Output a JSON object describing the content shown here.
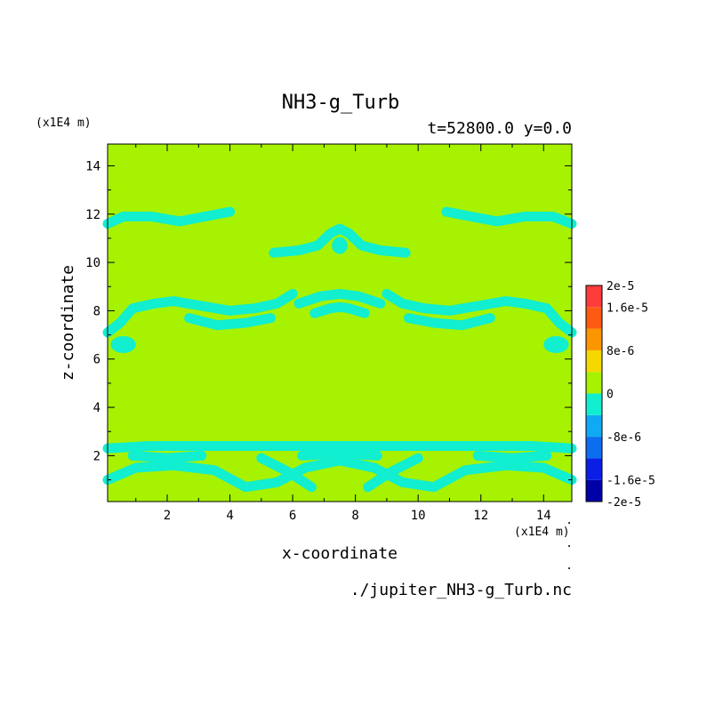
{
  "chart_data": {
    "type": "heatmap",
    "title": "NH3-g_Turb",
    "subtitle": "t=52800.0 y=0.0",
    "xlabel": "x-coordinate",
    "ylabel": "z-coordinate",
    "x_unit": "(x1E4 m)",
    "y_unit": "(x1E4 m)",
    "source_file": "./jupiter_NH3-g_Turb.nc",
    "xlim": [
      0.1,
      14.9
    ],
    "ylim": [
      0.1,
      14.9
    ],
    "x_ticks": [
      2,
      4,
      6,
      8,
      10,
      12,
      14
    ],
    "y_ticks": [
      2,
      4,
      6,
      8,
      10,
      12,
      14
    ],
    "x_tick_labels": [
      "2",
      "4",
      "6",
      "8",
      "10",
      "12",
      "14"
    ],
    "y_tick_labels": [
      "2",
      "4",
      "6",
      "8",
      "10",
      "12",
      "14"
    ],
    "background_level": "0 to 4e-6",
    "colors": {
      "background_field": "#a6f200",
      "negative_band": "#11eed0"
    },
    "colorbar": {
      "boundaries": [
        -2e-05,
        -1.6e-05,
        -1.2e-05,
        -8e-06,
        -4e-06,
        0,
        4e-06,
        8e-06,
        1.2e-05,
        1.6e-05,
        2e-05
      ],
      "colors": [
        "#0000a8",
        "#0a1ee6",
        "#0b6ef0",
        "#10aaf4",
        "#11eed0",
        "#a6f200",
        "#f5d800",
        "#fb9500",
        "#ff5a14",
        "#ff3c3c"
      ],
      "labels": [
        "2e-5",
        "1.6e-5",
        "8e-6",
        "0",
        "-8e-6",
        "-1.6e-5",
        "-2e-5"
      ],
      "label_values": [
        2e-05,
        1.6e-05,
        8e-06,
        0,
        -8e-06,
        -1.6e-05,
        -2e-05
      ]
    },
    "features": [
      {
        "level": "-4e-6 to 0",
        "description": "negative anomaly contours",
        "paths": [
          [
            [
              0.1,
              11.6
            ],
            [
              0.6,
              11.9
            ],
            [
              1.5,
              11.9
            ],
            [
              2.4,
              11.7
            ],
            [
              3.2,
              11.9
            ],
            [
              4.0,
              12.1
            ]
          ],
          [
            [
              10.9,
              12.1
            ],
            [
              11.7,
              11.9
            ],
            [
              12.5,
              11.7
            ],
            [
              13.4,
              11.9
            ],
            [
              14.3,
              11.9
            ],
            [
              14.9,
              11.6
            ]
          ],
          [
            [
              5.4,
              10.4
            ],
            [
              6.2,
              10.5
            ],
            [
              6.8,
              10.7
            ],
            [
              7.2,
              11.2
            ],
            [
              7.5,
              11.4
            ],
            [
              7.8,
              11.2
            ],
            [
              8.2,
              10.7
            ],
            [
              8.8,
              10.5
            ],
            [
              9.6,
              10.4
            ]
          ],
          [
            [
              0.1,
              7.1
            ],
            [
              0.5,
              7.5
            ],
            [
              0.9,
              8.1
            ],
            [
              1.6,
              8.3
            ],
            [
              2.2,
              8.4
            ],
            [
              3.1,
              8.2
            ],
            [
              4.0,
              8.0
            ],
            [
              4.8,
              8.1
            ],
            [
              5.5,
              8.3
            ],
            [
              6.0,
              8.7
            ]
          ],
          [
            [
              14.9,
              7.1
            ],
            [
              14.5,
              7.5
            ],
            [
              14.1,
              8.1
            ],
            [
              13.4,
              8.3
            ],
            [
              12.8,
              8.4
            ],
            [
              11.9,
              8.2
            ],
            [
              11.0,
              8.0
            ],
            [
              10.2,
              8.1
            ],
            [
              9.5,
              8.3
            ],
            [
              9.0,
              8.7
            ]
          ],
          [
            [
              6.2,
              8.3
            ],
            [
              6.9,
              8.6
            ],
            [
              7.5,
              8.7
            ],
            [
              8.1,
              8.6
            ],
            [
              8.8,
              8.3
            ]
          ],
          [
            [
              6.7,
              7.9
            ],
            [
              7.2,
              8.1
            ],
            [
              7.5,
              8.15
            ],
            [
              7.8,
              8.1
            ],
            [
              8.3,
              7.9
            ]
          ],
          [
            [
              2.7,
              7.7
            ],
            [
              3.6,
              7.4
            ],
            [
              4.5,
              7.5
            ],
            [
              5.3,
              7.7
            ]
          ],
          [
            [
              12.3,
              7.7
            ],
            [
              11.4,
              7.4
            ],
            [
              10.5,
              7.5
            ],
            [
              9.7,
              7.7
            ]
          ],
          [
            [
              0.1,
              2.3
            ],
            [
              1.4,
              2.4
            ],
            [
              3.0,
              2.4
            ],
            [
              5.0,
              2.4
            ],
            [
              7.5,
              2.4
            ],
            [
              10.0,
              2.4
            ],
            [
              12.0,
              2.4
            ],
            [
              13.6,
              2.4
            ],
            [
              14.9,
              2.3
            ]
          ],
          [
            [
              0.1,
              1.0
            ],
            [
              1.0,
              1.5
            ],
            [
              2.2,
              1.6
            ],
            [
              3.5,
              1.4
            ],
            [
              4.5,
              0.7
            ],
            [
              5.5,
              0.9
            ],
            [
              6.4,
              1.5
            ],
            [
              7.5,
              1.8
            ],
            [
              8.6,
              1.5
            ],
            [
              9.5,
              0.9
            ],
            [
              10.5,
              0.7
            ],
            [
              11.5,
              1.4
            ],
            [
              12.8,
              1.6
            ],
            [
              14.0,
              1.5
            ],
            [
              14.9,
              1.0
            ]
          ],
          [
            [
              0.9,
              2.0
            ],
            [
              2.0,
              1.9
            ],
            [
              3.1,
              2.0
            ]
          ],
          [
            [
              11.9,
              2.0
            ],
            [
              13.0,
              1.9
            ],
            [
              14.1,
              2.0
            ]
          ],
          [
            [
              5.0,
              1.9
            ],
            [
              5.9,
              1.3
            ],
            [
              6.6,
              0.7
            ]
          ],
          [
            [
              10.0,
              1.9
            ],
            [
              9.1,
              1.3
            ],
            [
              8.4,
              0.7
            ]
          ],
          [
            [
              6.3,
              2.0
            ],
            [
              7.5,
              2.1
            ],
            [
              8.7,
              2.0
            ]
          ]
        ],
        "blobs": [
          [
            7.5,
            10.7,
            0.25,
            0.35
          ],
          [
            0.6,
            6.6,
            0.4,
            0.35
          ],
          [
            14.4,
            6.6,
            0.4,
            0.35
          ]
        ]
      }
    ]
  }
}
